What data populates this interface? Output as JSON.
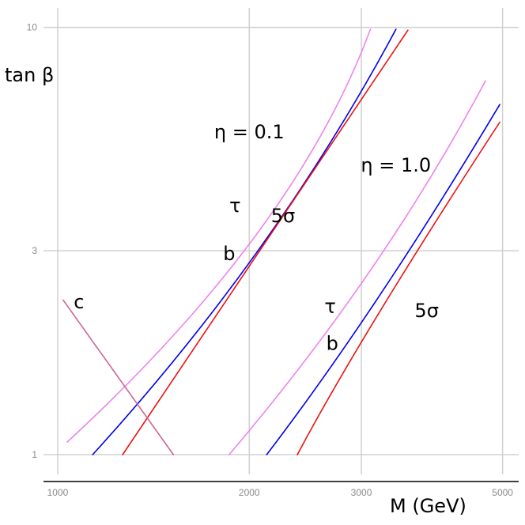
{
  "chart_data": {
    "type": "line",
    "xlabel": "M (GeV)",
    "ylabel": "tan β",
    "xscale": "log",
    "yscale": "log",
    "xlim": [
      950,
      5300
    ],
    "ylim": [
      0.95,
      10.2
    ],
    "xticks": [
      {
        "value": 1000,
        "label": "1000"
      },
      {
        "value": 2000,
        "label": "2000"
      },
      {
        "value": 3000,
        "label": "3000"
      },
      {
        "value": 5000,
        "label": "5000"
      }
    ],
    "yticks": [
      {
        "value": 1,
        "label": "1"
      },
      {
        "value": 3,
        "label": "3"
      },
      {
        "value": 10,
        "label": "10"
      }
    ],
    "grid": true,
    "colors": {
      "tau": "#ee82ee",
      "b": "#0000ee",
      "sigma5": "#ee1111",
      "c": "#cc6699"
    },
    "series": [
      {
        "id": "tau_eta01",
        "color": "#ee82ee",
        "points": [
          [
            1035,
            1.07
          ],
          [
            2060,
            3.3
          ],
          [
            3100,
            9.9
          ]
        ]
      },
      {
        "id": "b_eta01",
        "color": "#0000ee",
        "points": [
          [
            1135,
            1.0
          ],
          [
            2080,
            3.05
          ],
          [
            3400,
            9.9
          ]
        ]
      },
      {
        "id": "sigma5_eta01",
        "color": "#ee1111",
        "points": [
          [
            1265,
            1.0
          ],
          [
            2000,
            2.75
          ],
          [
            3550,
            9.85
          ]
        ]
      },
      {
        "id": "tau_eta10",
        "color": "#ee82ee",
        "points": [
          [
            1860,
            1.0
          ],
          [
            3100,
            2.7
          ],
          [
            4700,
            7.5
          ]
        ]
      },
      {
        "id": "b_eta10",
        "color": "#0000ee",
        "points": [
          [
            2130,
            1.0
          ],
          [
            3200,
            2.35
          ],
          [
            4950,
            6.6
          ]
        ]
      },
      {
        "id": "sigma5_eta10",
        "color": "#ee1111",
        "points": [
          [
            2380,
            1.0
          ],
          [
            3200,
            2.15
          ],
          [
            4950,
            6.0
          ]
        ]
      },
      {
        "id": "c",
        "color": "#cc6699",
        "points": [
          [
            1020,
            2.3
          ],
          [
            1520,
            1.0
          ]
        ]
      }
    ],
    "annotations": [
      {
        "id": "eta-01",
        "text": "η = 0.1",
        "x": 2000,
        "y": 5.5
      },
      {
        "id": "eta-10",
        "text": "η = 1.0",
        "x": 3400,
        "y": 4.6
      },
      {
        "id": "tau-1",
        "text": "τ",
        "x": 1900,
        "y": 3.7
      },
      {
        "id": "b-1",
        "text": "b",
        "x": 1860,
        "y": 2.85
      },
      {
        "id": "sigma5-1",
        "text": "5σ",
        "x": 2260,
        "y": 3.5
      },
      {
        "id": "tau-2",
        "text": "τ",
        "x": 2680,
        "y": 2.15
      },
      {
        "id": "b-2",
        "text": "b",
        "x": 2700,
        "y": 1.76
      },
      {
        "id": "sigma5-2",
        "text": "5σ",
        "x": 3800,
        "y": 2.1
      },
      {
        "id": "c-label",
        "text": "c",
        "x": 1080,
        "y": 2.2
      }
    ]
  }
}
